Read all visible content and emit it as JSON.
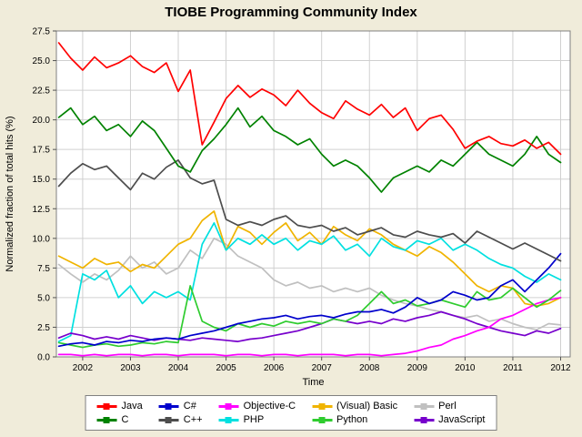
{
  "title": "TIOBE Programming Community Index",
  "chart_data": {
    "type": "line",
    "title": "TIOBE Programming Community Index",
    "xlabel": "Time",
    "ylabel": "Normalized fraction of total hits (%)",
    "xlim": [
      2001.45,
      2012.2
    ],
    "ylim": [
      0,
      27.5
    ],
    "x_ticks": [
      2002,
      2003,
      2004,
      2005,
      2006,
      2007,
      2008,
      2009,
      2010,
      2011,
      2012
    ],
    "y_ticks": [
      0,
      2.5,
      5,
      7.5,
      10,
      12.5,
      15,
      17.5,
      20,
      22.5,
      25,
      27.5
    ],
    "y_tick_labels": [
      "0.0",
      "2.5",
      "5.0",
      "7.5",
      "10.0",
      "12.5",
      "15.0",
      "17.5",
      "20.0",
      "22.5",
      "25.0",
      "27.5"
    ],
    "grid": true,
    "legend_position": "bottom",
    "x": [
      2001.5,
      2001.75,
      2002,
      2002.25,
      2002.5,
      2002.75,
      2003,
      2003.25,
      2003.5,
      2003.75,
      2004,
      2004.25,
      2004.5,
      2004.75,
      2005,
      2005.25,
      2005.5,
      2005.75,
      2006,
      2006.25,
      2006.5,
      2006.75,
      2007,
      2007.25,
      2007.5,
      2007.75,
      2008,
      2008.25,
      2008.5,
      2008.75,
      2009,
      2009.25,
      2009.5,
      2009.75,
      2010,
      2010.25,
      2010.5,
      2010.75,
      2011,
      2011.25,
      2011.5,
      2011.75,
      2012
    ],
    "series": [
      {
        "name": "Perl",
        "color": "#c0c0c0",
        "values": [
          7.8,
          7.0,
          6.3,
          7.0,
          6.5,
          7.3,
          8.5,
          7.5,
          8.0,
          7.0,
          7.5,
          9.0,
          8.3,
          10.0,
          9.5,
          8.5,
          8.0,
          7.5,
          6.5,
          6.0,
          6.3,
          5.8,
          6.0,
          5.5,
          5.8,
          5.5,
          5.8,
          5.2,
          4.8,
          4.5,
          4.3,
          4.0,
          3.8,
          3.5,
          3.3,
          3.5,
          3.0,
          3.2,
          2.8,
          2.5,
          2.3,
          2.8,
          2.7
        ]
      },
      {
        "name": "(Visual) Basic",
        "color": "#f0b400",
        "values": [
          8.5,
          8.0,
          7.5,
          8.3,
          7.8,
          8.0,
          7.2,
          7.8,
          7.5,
          8.5,
          9.5,
          10.0,
          11.5,
          12.3,
          9.0,
          11.0,
          10.5,
          9.5,
          10.5,
          11.3,
          9.8,
          10.5,
          9.5,
          11.0,
          10.3,
          9.8,
          10.8,
          10.3,
          9.5,
          9.0,
          8.5,
          9.3,
          8.8,
          8.0,
          7.0,
          6.0,
          5.5,
          6.0,
          5.8,
          4.5,
          4.3,
          4.5,
          5.0
        ]
      },
      {
        "name": "PHP",
        "color": "#00e0e0",
        "values": [
          1.3,
          1.8,
          7.0,
          6.5,
          7.3,
          5.0,
          6.0,
          4.5,
          5.5,
          5.0,
          5.5,
          4.8,
          9.5,
          11.3,
          9.0,
          10.0,
          9.5,
          10.3,
          9.5,
          10.0,
          9.0,
          9.8,
          9.5,
          10.2,
          9.0,
          9.5,
          8.5,
          10.0,
          9.3,
          9.0,
          9.8,
          9.5,
          10.0,
          9.0,
          9.5,
          9.0,
          8.3,
          7.8,
          7.5,
          6.8,
          6.3,
          7.0,
          6.5
        ]
      },
      {
        "name": "JavaScript",
        "color": "#7700cc",
        "values": [
          1.6,
          2.0,
          1.8,
          1.5,
          1.7,
          1.5,
          1.8,
          1.6,
          1.4,
          1.6,
          1.5,
          1.4,
          1.6,
          1.5,
          1.4,
          1.3,
          1.5,
          1.6,
          1.8,
          2.0,
          2.2,
          2.5,
          2.8,
          3.2,
          3.0,
          2.8,
          3.0,
          2.8,
          3.2,
          3.0,
          3.3,
          3.5,
          3.8,
          3.5,
          3.2,
          2.8,
          2.5,
          2.2,
          2.0,
          1.8,
          2.2,
          2.0,
          2.4
        ]
      },
      {
        "name": "Objective-C",
        "color": "#ff00ff",
        "values": [
          0.2,
          0.2,
          0.1,
          0.2,
          0.1,
          0.2,
          0.2,
          0.1,
          0.2,
          0.2,
          0.1,
          0.2,
          0.2,
          0.2,
          0.1,
          0.2,
          0.2,
          0.1,
          0.2,
          0.2,
          0.1,
          0.2,
          0.2,
          0.2,
          0.1,
          0.2,
          0.2,
          0.1,
          0.2,
          0.3,
          0.5,
          0.8,
          1.0,
          1.5,
          1.8,
          2.2,
          2.5,
          3.2,
          3.5,
          4.0,
          4.5,
          4.8,
          5.0
        ]
      },
      {
        "name": "Python",
        "color": "#2fcc2f",
        "values": [
          1.2,
          1.0,
          0.8,
          1.0,
          1.1,
          0.9,
          1.0,
          1.2,
          1.1,
          1.3,
          1.2,
          6.0,
          3.0,
          2.5,
          2.2,
          2.8,
          2.5,
          2.8,
          2.6,
          3.0,
          2.8,
          3.0,
          2.8,
          3.2,
          3.0,
          3.5,
          4.5,
          5.5,
          4.5,
          4.8,
          4.3,
          4.5,
          4.8,
          4.5,
          4.2,
          5.5,
          4.8,
          5.0,
          5.8,
          5.0,
          4.2,
          4.8,
          5.6
        ]
      },
      {
        "name": "C#",
        "color": "#0000cc",
        "values": [
          0.9,
          1.1,
          1.2,
          1.0,
          1.3,
          1.2,
          1.4,
          1.3,
          1.5,
          1.6,
          1.5,
          1.8,
          2.0,
          2.2,
          2.5,
          2.8,
          3.0,
          3.2,
          3.3,
          3.5,
          3.2,
          3.4,
          3.5,
          3.3,
          3.6,
          3.8,
          3.8,
          4.0,
          3.7,
          4.2,
          5.0,
          4.5,
          4.8,
          5.5,
          5.2,
          4.8,
          5.0,
          6.0,
          6.5,
          5.5,
          6.5,
          7.5,
          8.7
        ]
      },
      {
        "name": "C++",
        "color": "#4d4d4d",
        "values": [
          14.4,
          15.5,
          16.3,
          15.8,
          16.1,
          15.1,
          14.1,
          15.5,
          15.0,
          16.0,
          16.6,
          15.1,
          14.6,
          14.9,
          11.6,
          11.1,
          11.4,
          11.1,
          11.6,
          11.9,
          11.1,
          10.9,
          11.1,
          10.6,
          10.9,
          10.3,
          10.6,
          10.9,
          10.3,
          10.1,
          10.6,
          10.3,
          10.1,
          10.4,
          9.6,
          10.6,
          10.1,
          9.6,
          9.1,
          9.6,
          9.1,
          8.6,
          8.1
        ]
      },
      {
        "name": "C",
        "color": "#008200",
        "values": [
          20.2,
          21.0,
          19.6,
          20.3,
          19.1,
          19.6,
          18.6,
          19.9,
          19.1,
          17.6,
          16.1,
          15.6,
          17.4,
          18.4,
          19.6,
          21.0,
          19.4,
          20.3,
          19.1,
          18.6,
          17.9,
          18.4,
          17.1,
          16.1,
          16.6,
          16.1,
          15.1,
          13.9,
          15.1,
          15.6,
          16.1,
          15.6,
          16.6,
          16.1,
          17.1,
          18.1,
          17.1,
          16.6,
          16.1,
          17.1,
          18.6,
          17.1,
          16.4
        ]
      },
      {
        "name": "Java",
        "color": "#ff0000",
        "values": [
          26.5,
          25.2,
          24.2,
          25.3,
          24.4,
          24.8,
          25.4,
          24.5,
          24.0,
          24.8,
          22.4,
          24.2,
          17.9,
          19.8,
          21.8,
          22.9,
          21.9,
          22.6,
          22.1,
          21.2,
          22.5,
          21.4,
          20.6,
          20.1,
          21.6,
          20.9,
          20.4,
          21.3,
          20.2,
          21.0,
          19.1,
          20.1,
          20.4,
          19.2,
          17.6,
          18.2,
          18.6,
          18.0,
          17.8,
          18.3,
          17.6,
          18.1,
          17.1
        ]
      }
    ]
  },
  "legend": {
    "rows": [
      [
        "Java",
        "C#",
        "Objective-C",
        "(Visual) Basic",
        "Perl"
      ],
      [
        "C",
        "C++",
        "PHP",
        "Python",
        "JavaScript"
      ]
    ]
  },
  "style": {
    "background": "#f0ecda",
    "plot_background": "#ffffff",
    "gridline_color": "#d0d0d0",
    "plot_border_color": "#808080"
  }
}
